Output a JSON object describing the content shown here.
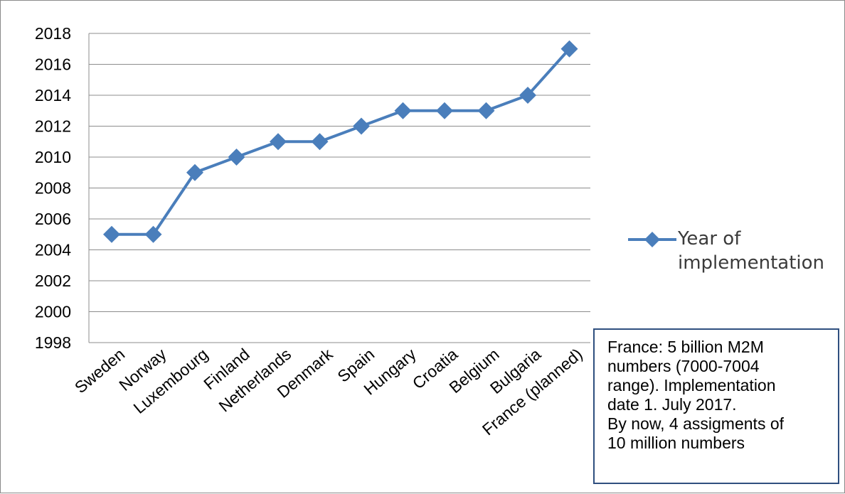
{
  "chart_data": {
    "type": "line",
    "categories": [
      "Sweden",
      "Norway",
      "Luxembourg",
      "Finland",
      "Netherlands",
      "Denmark",
      "Spain",
      "Hungary",
      "Croatia",
      "Belgium",
      "Bulgaria",
      "France (planned)"
    ],
    "series": [
      {
        "name": "Year of implementation",
        "values": [
          2005,
          2005,
          2009,
          2010,
          2011,
          2011,
          2012,
          2013,
          2013,
          2013,
          2014,
          2017
        ]
      }
    ],
    "y_ticks": [
      "1998",
      "2000",
      "2002",
      "2004",
      "2006",
      "2008",
      "2010",
      "2012",
      "2014",
      "2016",
      "2018"
    ],
    "ylim": [
      1998,
      2018
    ],
    "grid": true,
    "legend_position": "right",
    "legend_lines": [
      "Year of",
      "implementation"
    ],
    "series_color": "#4a7ebb",
    "annotation": {
      "lines": [
        "France: 5 billion M2M",
        "numbers (7000-7004",
        "range). Implementation",
        "date 1. July 2017.",
        "By now, 4 assigments of",
        "10 million numbers"
      ]
    }
  }
}
